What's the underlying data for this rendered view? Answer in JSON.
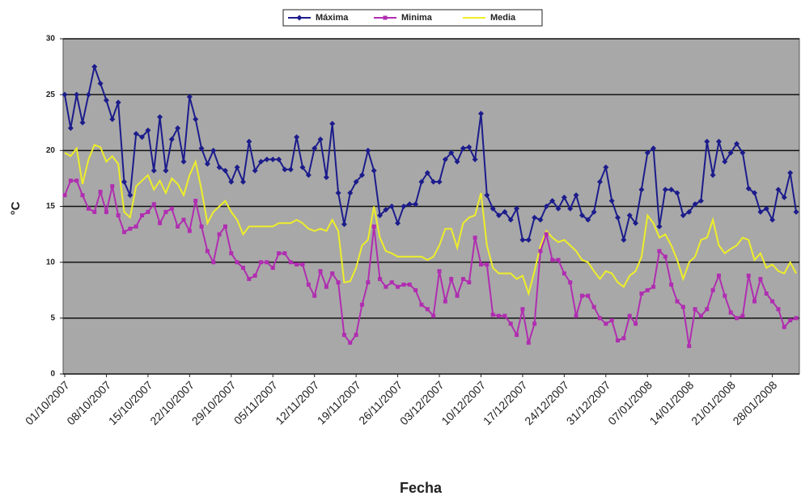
{
  "chart_data": {
    "type": "line",
    "x_label": "Fecha",
    "y_label": "°C",
    "categories": [
      "01/10/2007",
      null,
      null,
      null,
      null,
      null,
      null,
      "08/10/2007",
      null,
      null,
      null,
      null,
      null,
      null,
      "15/10/2007",
      null,
      null,
      null,
      null,
      null,
      null,
      "22/10/2007",
      null,
      null,
      null,
      null,
      null,
      null,
      "29/10/2007",
      null,
      null,
      null,
      null,
      null,
      null,
      "05/11/2007",
      null,
      null,
      null,
      null,
      null,
      null,
      "12/11/2007",
      null,
      null,
      null,
      null,
      null,
      null,
      "19/11/2007",
      null,
      null,
      null,
      null,
      null,
      null,
      "26/11/2007",
      null,
      null,
      null,
      null,
      null,
      null,
      "03/12/2007",
      null,
      null,
      null,
      null,
      null,
      null,
      "10/12/2007",
      null,
      null,
      null,
      null,
      null,
      null,
      "17/12/2007",
      null,
      null,
      null,
      null,
      null,
      null,
      "24/12/2007",
      null,
      null,
      null,
      null,
      null,
      null,
      "31/12/2007",
      null,
      null,
      null,
      null,
      null,
      null,
      "07/01/2008",
      null,
      null,
      null,
      null,
      null,
      null,
      "14/01/2008",
      null,
      null,
      null,
      null,
      null,
      null,
      "21/01/2008",
      null,
      null,
      null,
      null,
      null,
      null,
      "28/01/2008",
      null,
      null,
      null,
      null
    ],
    "series": [
      {
        "name": "Máxima",
        "color": "#1c1c8c",
        "marker": "diamond",
        "values": [
          25,
          22,
          25,
          22.5,
          25,
          27.5,
          26,
          24.5,
          22.8,
          24.3,
          17.2,
          16,
          21.5,
          21.2,
          21.8,
          18.2,
          23,
          18.2,
          21,
          22,
          19,
          24.8,
          22.8,
          20.2,
          18.8,
          20,
          18.5,
          18.2,
          17.2,
          18.5,
          17.2,
          20.8,
          18.2,
          19,
          19.2,
          19.2,
          19.2,
          18.3,
          18.3,
          21.2,
          18.5,
          17.8,
          20.2,
          21,
          17.6,
          22.4,
          16.2,
          13.4,
          16.2,
          17.2,
          17.8,
          20,
          18.2,
          14.2,
          14.7,
          15,
          13.5,
          15,
          15.2,
          15.2,
          17.2,
          18,
          17.2,
          17.2,
          19.2,
          19.8,
          19,
          20.2,
          20.3,
          19.2,
          23.3,
          16,
          14.8,
          14.2,
          14.5,
          13.8,
          14.8,
          12,
          12,
          14,
          13.8,
          15,
          15.5,
          14.8,
          15.8,
          14.8,
          16,
          14.2,
          13.8,
          14.5,
          17.2,
          18.5,
          15.5,
          14,
          12,
          14.2,
          13.5,
          16.5,
          19.8,
          20.2,
          13.2,
          16.5,
          16.5,
          16.2,
          14.2,
          14.5,
          15.2,
          15.5,
          20.8,
          17.8,
          20.8,
          19,
          19.8,
          20.6,
          19.8,
          16.6,
          16.2,
          14.5,
          14.8,
          13.8,
          16.5,
          15.8,
          18,
          14.5
        ]
      },
      {
        "name": "Minima",
        "color": "#b02eb0",
        "marker": "square",
        "values": [
          16,
          17.3,
          17.3,
          16,
          14.8,
          14.5,
          16.3,
          14.5,
          16.8,
          14.2,
          12.7,
          13,
          13.2,
          14.2,
          14.5,
          15.2,
          13.5,
          14.5,
          14.8,
          13.2,
          13.8,
          12.8,
          15.5,
          13.2,
          11,
          10,
          12.5,
          13.2,
          10.8,
          10,
          9.5,
          8.5,
          8.8,
          10,
          10,
          9.5,
          10.8,
          10.8,
          10,
          9.8,
          9.8,
          8,
          7,
          9.2,
          7.8,
          9,
          8.2,
          3.5,
          2.8,
          3.5,
          6.2,
          8.2,
          13.2,
          8.5,
          7.8,
          8.2,
          7.8,
          8,
          8,
          7.5,
          6.2,
          5.8,
          5.2,
          9.2,
          6.5,
          8.5,
          7,
          8.5,
          8.2,
          12.2,
          9.8,
          9.8,
          5.3,
          5.2,
          5.2,
          4.5,
          3.5,
          5.8,
          2.8,
          4.5,
          11,
          12.5,
          10.2,
          10.2,
          9,
          8.2,
          5.2,
          7,
          7,
          6,
          5,
          4.5,
          4.8,
          3,
          3.2,
          5.2,
          4.5,
          7.2,
          7.5,
          7.8,
          11,
          10.5,
          8,
          6.5,
          6,
          2.5,
          5.8,
          5.2,
          5.8,
          7.5,
          8.8,
          7,
          5.5,
          5,
          5.2,
          8.8,
          6.5,
          8.5,
          7.2,
          6.5,
          5.8,
          4.2,
          4.8,
          5
        ]
      },
      {
        "name": "Media",
        "color": "#eeee2a",
        "marker": "none",
        "values": [
          19.8,
          19.5,
          20.2,
          17,
          19.2,
          20.5,
          20.3,
          19,
          19.5,
          18.8,
          14.5,
          14,
          16.8,
          17.3,
          17.8,
          16.5,
          17.3,
          16.2,
          17.5,
          17,
          16,
          17.8,
          19,
          16.5,
          13.5,
          14.5,
          15,
          15.5,
          14.5,
          13.8,
          12.5,
          13.2,
          13.2,
          13.2,
          13.2,
          13.2,
          13.5,
          13.5,
          13.5,
          13.8,
          13.5,
          13,
          12.8,
          13,
          12.8,
          13.8,
          12.8,
          8.2,
          8.3,
          9.5,
          11.5,
          12,
          15,
          12.2,
          11,
          10.8,
          10.5,
          10.5,
          10.5,
          10.5,
          10.5,
          10.2,
          10.5,
          11.5,
          13,
          13,
          11.3,
          13.5,
          14,
          14.2,
          16.2,
          11.5,
          9.5,
          9,
          9,
          9,
          8.5,
          8.8,
          7.2,
          9.2,
          11.5,
          12.8,
          12.2,
          11.8,
          12,
          11.5,
          11,
          10.2,
          10,
          9.2,
          8.5,
          9.2,
          9,
          8.2,
          7.8,
          8.8,
          9.2,
          10.5,
          14.2,
          13.5,
          12.2,
          12.5,
          11.5,
          10.2,
          8.5,
          10,
          10.5,
          12,
          12.2,
          13.8,
          11.5,
          10.8,
          11.2,
          11.5,
          12.2,
          12,
          10.2,
          10.8,
          9.5,
          9.8,
          9.2,
          9,
          10,
          9
        ]
      }
    ],
    "ylim": [
      0,
      30
    ],
    "yticks": [
      0,
      5,
      10,
      15,
      20,
      25,
      30
    ],
    "grid": true,
    "legend": "top"
  }
}
